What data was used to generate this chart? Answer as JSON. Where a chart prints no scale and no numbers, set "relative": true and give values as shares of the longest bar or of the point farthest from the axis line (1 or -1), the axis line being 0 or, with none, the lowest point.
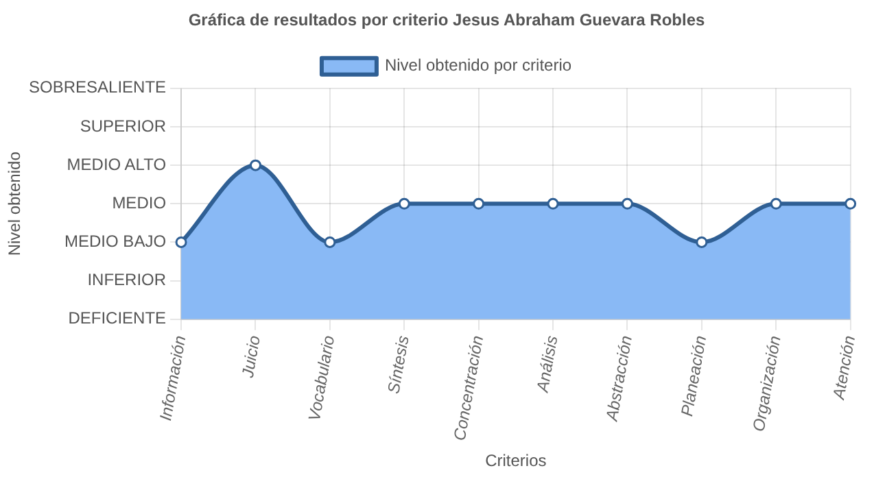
{
  "chart_data": {
    "type": "area",
    "title": "Gráfica de resultados por criterio Jesus Abraham Guevara Robles",
    "xlabel": "Criterios",
    "annotations": [
      "Nivel obtenido"
    ],
    "categories": [
      "Información",
      "Juicio",
      "Vocabulario",
      "Síntesis",
      "Concentración",
      "Análisis",
      "Abstracción",
      "Planeación",
      "Organización",
      "Atención"
    ],
    "y_categories": [
      "SOBRESALIENTE",
      "SUPERIOR",
      "MEDIO ALTO",
      "MEDIO",
      "MEDIO BAJO",
      "INFERIOR",
      "DEFICIENTE"
    ],
    "relative": true,
    "series": [
      {
        "name": "Nivel obtenido por criterio",
        "color": "#2f5f94",
        "values": [
          0.5,
          1,
          0.5,
          0.75,
          0.75,
          0.75,
          0.75,
          0.5,
          0.75,
          0.75
        ]
      }
    ],
    "grid": true,
    "legend": "top",
    "marker": "circle",
    "line_style": "solid"
  }
}
